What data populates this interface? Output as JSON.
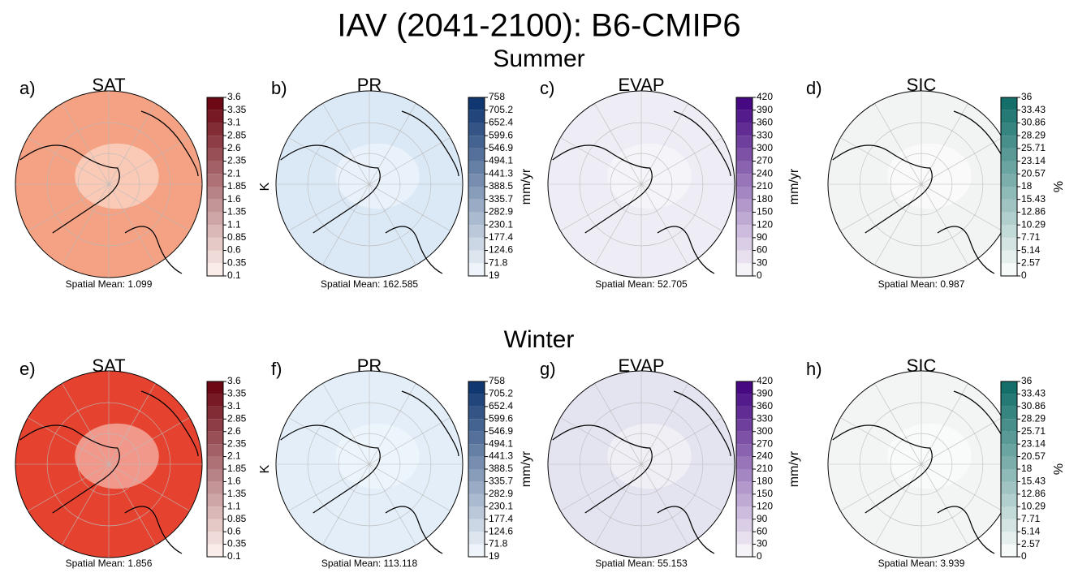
{
  "title": "IAV (2041-2100): B6-CMIP6",
  "rows": [
    {
      "title": "Summer",
      "panels": [
        {
          "label": "a)",
          "variable": "SAT",
          "unit": "K",
          "cmap": [
            "#fff5f0",
            "#67000d"
          ],
          "map_color": "#f4a283",
          "ticks": [
            0.1,
            0.35,
            0.6,
            0.85,
            1.1,
            1.35,
            1.6,
            1.85,
            2.1,
            2.35,
            2.6,
            2.85,
            3.1,
            3.35,
            3.6
          ],
          "mean": "Spatial Mean: 1.099"
        },
        {
          "label": "b)",
          "variable": "PR",
          "unit": "mm/yr",
          "cmap": [
            "#f7fbff",
            "#08306b"
          ],
          "map_color": "#dbe8f5",
          "ticks": [
            19,
            71.8,
            124.6,
            177.4,
            230.1,
            282.9,
            335.7,
            388.5,
            441.3,
            494.1,
            546.9,
            599.6,
            652.4,
            705.2,
            758
          ],
          "mean": "Spatial Mean: 162.585"
        },
        {
          "label": "c)",
          "variable": "EVAP",
          "unit": "mm/yr",
          "cmap": [
            "#fcfbfd",
            "#3f007d"
          ],
          "map_color": "#eeedf6",
          "ticks": [
            0,
            30,
            60,
            90,
            120,
            150,
            180,
            210,
            240,
            270,
            300,
            330,
            360,
            390,
            420
          ],
          "mean": "Spatial Mean: 52.705"
        },
        {
          "label": "d)",
          "variable": "SIC",
          "unit": "%",
          "cmap": [
            "#ffffff",
            "#0b6a64"
          ],
          "map_color": "#f2f4f3",
          "ticks": [
            0,
            2.57,
            5.14,
            7.71,
            10.29,
            12.86,
            15.43,
            18,
            20.57,
            23.14,
            25.71,
            28.29,
            30.86,
            33.43,
            36
          ],
          "mean": "Spatial Mean: 0.987"
        }
      ]
    },
    {
      "title": "Winter",
      "panels": [
        {
          "label": "e)",
          "variable": "SAT",
          "unit": "K",
          "cmap": [
            "#fff5f0",
            "#67000d"
          ],
          "map_color": "#e5432f",
          "ticks": [
            0.1,
            0.35,
            0.6,
            0.85,
            1.1,
            1.35,
            1.6,
            1.85,
            2.1,
            2.35,
            2.6,
            2.85,
            3.1,
            3.35,
            3.6
          ],
          "mean": "Spatial Mean: 1.856"
        },
        {
          "label": "f)",
          "variable": "PR",
          "unit": "mm/yr",
          "cmap": [
            "#f7fbff",
            "#08306b"
          ],
          "map_color": "#e3eef8",
          "ticks": [
            19,
            71.8,
            124.6,
            177.4,
            230.1,
            282.9,
            335.7,
            388.5,
            441.3,
            494.1,
            546.9,
            599.6,
            652.4,
            705.2,
            758
          ],
          "mean": "Spatial Mean: 113.118"
        },
        {
          "label": "g)",
          "variable": "EVAP",
          "unit": "mm/yr",
          "cmap": [
            "#fcfbfd",
            "#3f007d"
          ],
          "map_color": "#e4e3f0",
          "ticks": [
            0,
            30,
            60,
            90,
            120,
            150,
            180,
            210,
            240,
            270,
            300,
            330,
            360,
            390,
            420
          ],
          "mean": "Spatial Mean: 55.153"
        },
        {
          "label": "h)",
          "variable": "SIC",
          "unit": "%",
          "cmap": [
            "#ffffff",
            "#0b6a64"
          ],
          "map_color": "#f3f5f4",
          "ticks": [
            0,
            2.57,
            5.14,
            7.71,
            10.29,
            12.86,
            15.43,
            18,
            20.57,
            23.14,
            25.71,
            28.29,
            30.86,
            33.43,
            36
          ],
          "mean": "Spatial Mean: 3.939"
        }
      ]
    }
  ]
}
